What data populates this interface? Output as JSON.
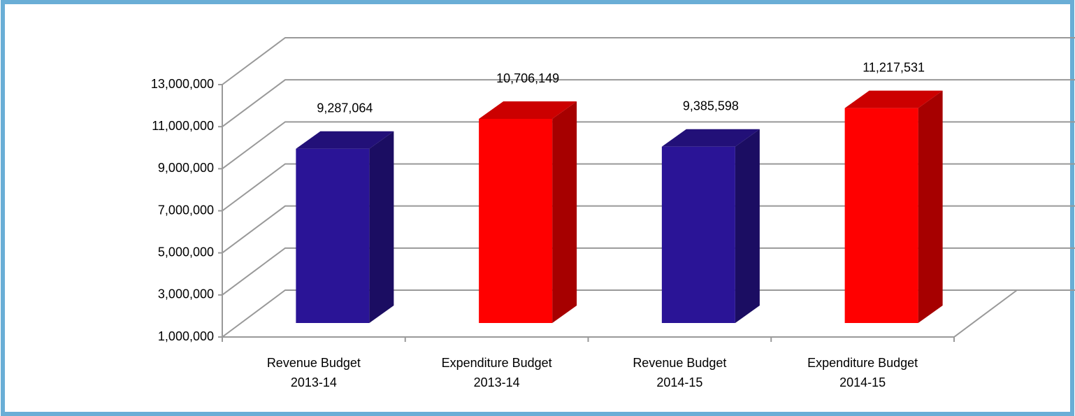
{
  "chart_data": {
    "type": "bar3d",
    "categories": [
      [
        "Revenue Budget",
        "2013-14"
      ],
      [
        "Expenditure Budget",
        "2013-14"
      ],
      [
        "Revenue Budget",
        "2014-15"
      ],
      [
        "Expenditure Budget",
        "2014-15"
      ]
    ],
    "values": [
      9287064,
      10706149,
      9385598,
      11217531
    ],
    "value_labels": [
      "9,287,064",
      "10,706,149",
      "9,385,598",
      "11,217,531"
    ],
    "colors": [
      "#2a1496",
      "#ff0000",
      "#2a1496",
      "#ff0000"
    ],
    "ylim": [
      1000000,
      13000000
    ],
    "yticks": [
      {
        "value": 1000000,
        "label": "1,000,000"
      },
      {
        "value": 3000000,
        "label": "3,000,000"
      },
      {
        "value": 5000000,
        "label": "5,000,000"
      },
      {
        "value": 7000000,
        "label": "7,000,000"
      },
      {
        "value": 9000000,
        "label": "9,000,000"
      },
      {
        "value": 11000000,
        "label": "11,000,000"
      },
      {
        "value": 13000000,
        "label": "13,000,000"
      }
    ],
    "grid": true
  }
}
